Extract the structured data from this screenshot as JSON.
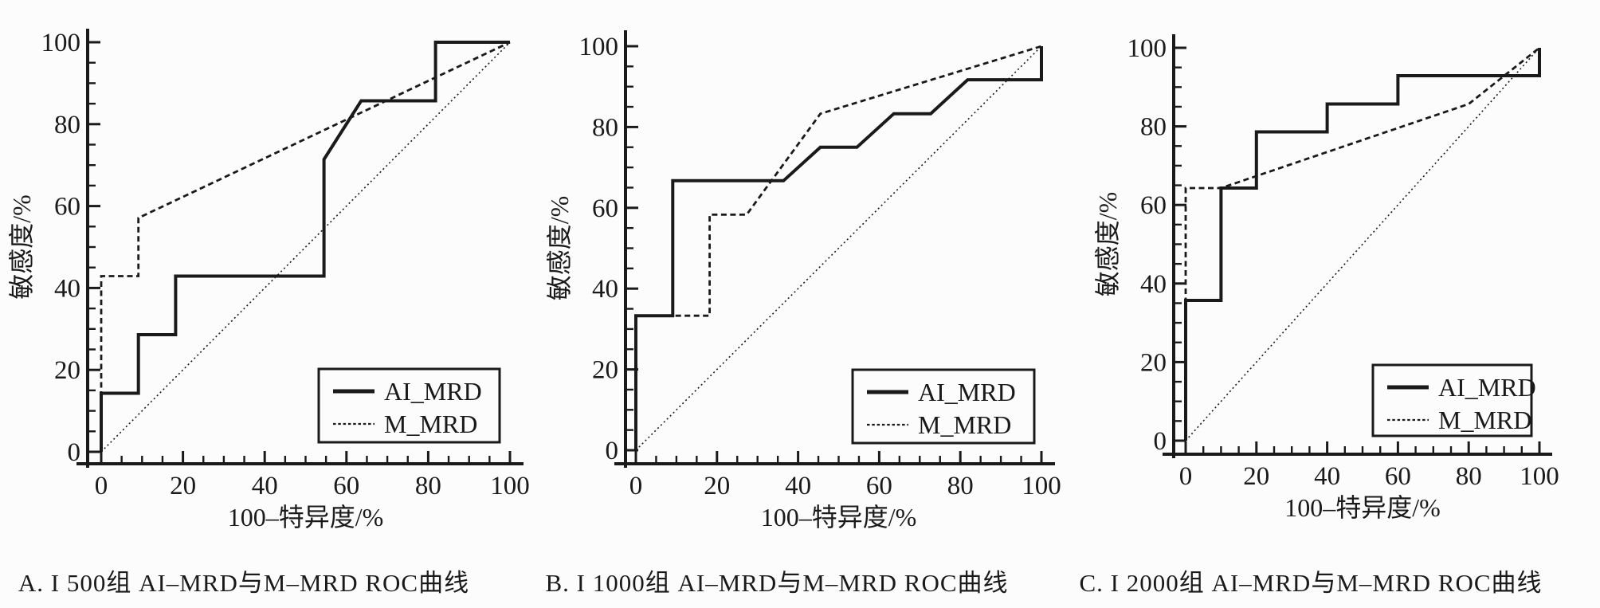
{
  "page": {
    "background_color": "#fcfcfc",
    "ink_color": "#1a1a1a",
    "figure_type": "ROC curve comparison, three panels"
  },
  "legend": {
    "position": "lower right",
    "items": [
      {
        "label": "AI_MRD",
        "style": "solid"
      },
      {
        "label": "M_MRD",
        "style": "dashed"
      }
    ]
  },
  "chart_data": [
    {
      "type": "line",
      "panel": "A",
      "caption": "A. I 500组 AI–MRD与M–MRD ROC曲线",
      "xlabel": "100–特异度/%",
      "ylabel": "敏感度/%",
      "xlim": [
        0,
        100
      ],
      "ylim": [
        0,
        100
      ],
      "xticks": [
        0,
        20,
        40,
        60,
        80,
        100
      ],
      "yticks": [
        0,
        20,
        40,
        60,
        80,
        100
      ],
      "minor_tick_step": 5,
      "grid": false,
      "legend_position": "lower right",
      "series": [
        {
          "name": "AI_MRD",
          "style": "solid",
          "in_legend": true,
          "points": [
            [
              0,
              0
            ],
            [
              0,
              14.3
            ],
            [
              9.1,
              14.3
            ],
            [
              9.1,
              28.6
            ],
            [
              18.2,
              28.6
            ],
            [
              18.2,
              42.9
            ],
            [
              54.5,
              42.9
            ],
            [
              54.5,
              71.4
            ],
            [
              63.6,
              85.7
            ],
            [
              81.8,
              85.7
            ],
            [
              81.8,
              100
            ],
            [
              100,
              100
            ]
          ]
        },
        {
          "name": "M_MRD",
          "style": "dashed",
          "in_legend": true,
          "points": [
            [
              0,
              0
            ],
            [
              0,
              42.9
            ],
            [
              9.1,
              42.9
            ],
            [
              9.1,
              57.1
            ],
            [
              100,
              100
            ]
          ]
        },
        {
          "name": "reference-diagonal",
          "style": "dotted",
          "in_legend": false,
          "points": [
            [
              0,
              0
            ],
            [
              100,
              100
            ]
          ]
        }
      ]
    },
    {
      "type": "line",
      "panel": "B",
      "caption": "B. I 1000组 AI–MRD与M–MRD ROC曲线",
      "xlabel": "100–特异度/%",
      "ylabel": "敏感度/%",
      "xlim": [
        0,
        100
      ],
      "ylim": [
        0,
        100
      ],
      "xticks": [
        0,
        20,
        40,
        60,
        80,
        100
      ],
      "yticks": [
        0,
        20,
        40,
        60,
        80,
        100
      ],
      "minor_tick_step": 5,
      "grid": false,
      "legend_position": "lower right",
      "series": [
        {
          "name": "AI_MRD",
          "style": "solid",
          "in_legend": true,
          "points": [
            [
              0,
              0
            ],
            [
              0,
              33.3
            ],
            [
              9.1,
              33.3
            ],
            [
              9.1,
              66.7
            ],
            [
              36.4,
              66.7
            ],
            [
              45.5,
              75
            ],
            [
              54.5,
              75
            ],
            [
              63.6,
              83.3
            ],
            [
              72.7,
              83.3
            ],
            [
              81.8,
              91.7
            ],
            [
              100,
              91.7
            ],
            [
              100,
              100
            ]
          ]
        },
        {
          "name": "M_MRD",
          "style": "dashed",
          "in_legend": true,
          "points": [
            [
              0,
              0
            ],
            [
              0,
              33.3
            ],
            [
              18.2,
              33.3
            ],
            [
              18.2,
              58.3
            ],
            [
              27.3,
              58.3
            ],
            [
              45.5,
              83.3
            ],
            [
              100,
              100
            ]
          ]
        },
        {
          "name": "reference-diagonal",
          "style": "dotted",
          "in_legend": false,
          "points": [
            [
              0,
              0
            ],
            [
              100,
              100
            ]
          ]
        }
      ]
    },
    {
      "type": "line",
      "panel": "C",
      "caption": "C. I 2000组 AI–MRD与M–MRD ROC曲线",
      "xlabel": "100–特异度/%",
      "ylabel": "敏感度/%",
      "xlim": [
        0,
        100
      ],
      "ylim": [
        0,
        100
      ],
      "xticks": [
        0,
        20,
        40,
        60,
        80,
        100
      ],
      "yticks": [
        0,
        20,
        40,
        60,
        80,
        100
      ],
      "minor_tick_step": 5,
      "grid": false,
      "legend_position": "lower right",
      "series": [
        {
          "name": "AI_MRD",
          "style": "solid",
          "in_legend": true,
          "points": [
            [
              0,
              0
            ],
            [
              0,
              35.7
            ],
            [
              10,
              35.7
            ],
            [
              10,
              64.3
            ],
            [
              20,
              64.3
            ],
            [
              20,
              78.6
            ],
            [
              40,
              78.6
            ],
            [
              40,
              85.7
            ],
            [
              60,
              85.7
            ],
            [
              60,
              92.9
            ],
            [
              100,
              92.9
            ],
            [
              100,
              100
            ]
          ]
        },
        {
          "name": "M_MRD",
          "style": "dashed",
          "in_legend": true,
          "points": [
            [
              0,
              0
            ],
            [
              0,
              64.3
            ],
            [
              10,
              64.3
            ],
            [
              80,
              85.7
            ],
            [
              100,
              100
            ]
          ]
        },
        {
          "name": "reference-diagonal",
          "style": "dotted",
          "in_legend": false,
          "points": [
            [
              0,
              0
            ],
            [
              100,
              100
            ]
          ]
        }
      ]
    }
  ]
}
